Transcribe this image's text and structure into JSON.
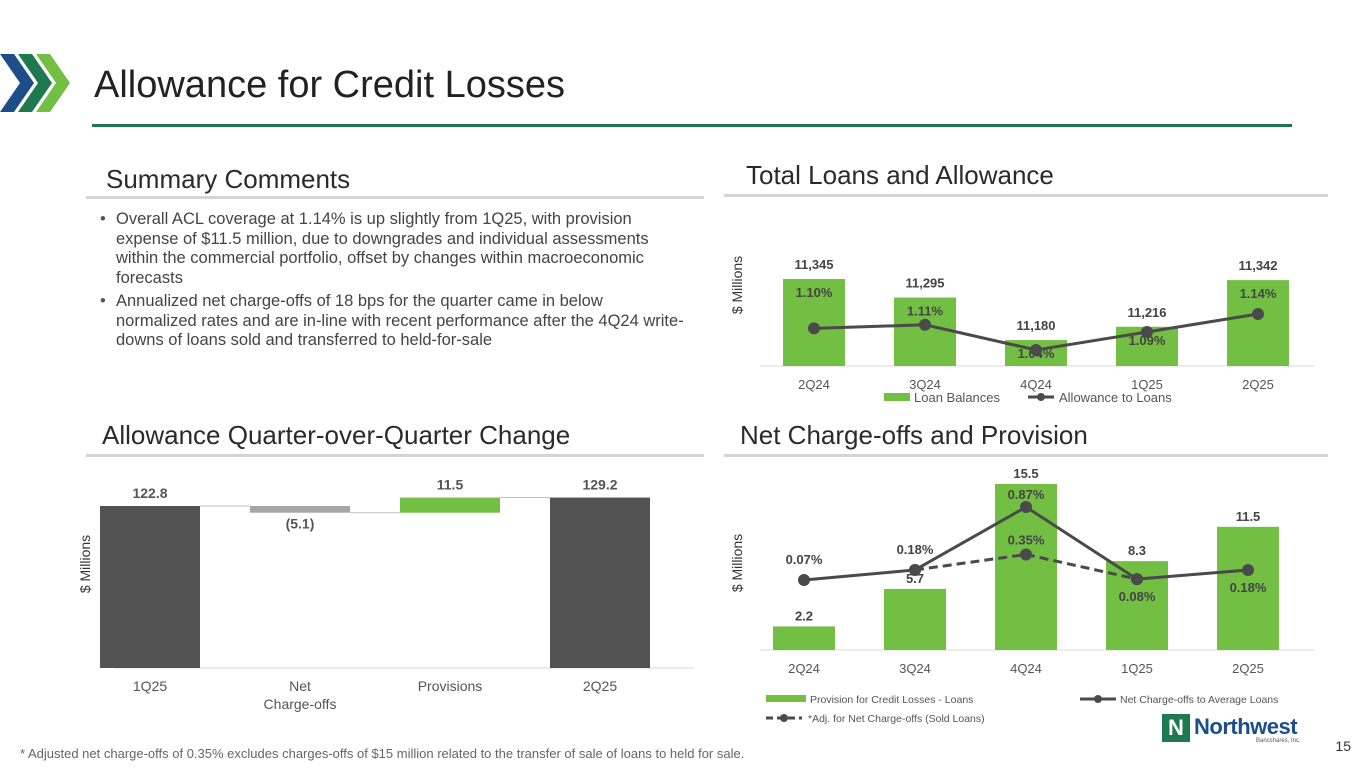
{
  "header": {
    "title": "Allowance for Credit Losses"
  },
  "summary": {
    "title": "Summary Comments",
    "bullets": [
      "Overall ACL coverage at 1.14% is up slightly from 1Q25, with provision expense of $11.5 million, due to downgrades and individual assessments within the commercial portfolio, offset by changes within macroeconomic forecasts",
      "Annualized net charge-offs of 18 bps for the quarter came in below normalized rates and are in-line with recent performance after the 4Q24 write-downs of loans sold and transferred to held-for-sale"
    ]
  },
  "loans": {
    "title": "Total Loans and Allowance",
    "ylabel": "$ Millions"
  },
  "allowance": {
    "title": "Allowance Quarter-over-Quarter Change",
    "ylabel": "$ Millions"
  },
  "nco": {
    "title": "Net Charge-offs and Provision",
    "ylabel": "$ Millions"
  },
  "footer": {
    "footnote": "*   Adjusted net charge-offs of 0.35% excludes charges-offs of $15 million related to the transfer of sale of loans to held for sale.",
    "page_number": "15",
    "logo_name": "Northwest",
    "logo_sub": "Bancshares, Inc.",
    "logo_mark": "N"
  },
  "colors": {
    "green": "#72bf44",
    "dark_gray": "#535353",
    "light_gray": "#a6a6a6",
    "line": "#4a4a4a",
    "brand_green": "#1e7a4e",
    "brand_blue": "#1d4e89"
  },
  "chart_data": [
    {
      "id": "loans",
      "type": "bar",
      "categories": [
        "2Q24",
        "3Q24",
        "4Q24",
        "1Q25",
        "2Q25"
      ],
      "series": [
        {
          "name": "Loan Balances",
          "type": "bar",
          "values": [
            11345,
            11295,
            11180,
            11216,
            11342
          ],
          "labels": [
            "11,345",
            "11,295",
            "11,180",
            "11,216",
            "11,342"
          ]
        },
        {
          "name": "Allowance to Loans",
          "type": "line",
          "values": [
            1.1,
            1.11,
            1.04,
            1.09,
            1.14
          ],
          "labels": [
            "1.10%",
            "1.11%",
            "1.04%",
            "1.09%",
            "1.14%"
          ]
        }
      ],
      "ylabel": "$ Millions",
      "legend": "bottom"
    },
    {
      "id": "waterfall",
      "type": "bar",
      "subtype": "waterfall",
      "categories": [
        "1Q25",
        "Net Charge-offs",
        "Provisions",
        "2Q25"
      ],
      "values": [
        122.8,
        -5.1,
        11.5,
        129.2
      ],
      "labels": [
        "122.8",
        "(5.1)",
        "11.5",
        "129.2"
      ],
      "ylabel": "$ Millions"
    },
    {
      "id": "nco",
      "type": "bar",
      "categories": [
        "2Q24",
        "3Q24",
        "4Q24",
        "1Q25",
        "2Q25"
      ],
      "series": [
        {
          "name": "Provision for Credit Losses - Loans",
          "type": "bar",
          "values": [
            2.2,
            5.7,
            15.5,
            8.3,
            11.5
          ],
          "labels": [
            "2.2",
            "5.7",
            "15.5",
            "8.3",
            "11.5"
          ]
        },
        {
          "name": "Net Charge-offs to Average Loans",
          "type": "line",
          "values": [
            0.07,
            0.18,
            0.87,
            0.08,
            0.18
          ],
          "labels": [
            "0.07%",
            "0.18%",
            "0.87%",
            "0.08%",
            "0.18%"
          ]
        },
        {
          "name": "*Adj. for Net Charge-offs (Sold Loans)",
          "type": "line",
          "style": "dashed",
          "x": [
            "3Q24",
            "4Q24",
            "1Q25"
          ],
          "values": [
            0.18,
            0.35,
            0.08
          ],
          "labels": [
            "",
            "0.35%",
            ""
          ]
        }
      ],
      "ylabel": "$ Millions",
      "legend": "bottom"
    }
  ]
}
